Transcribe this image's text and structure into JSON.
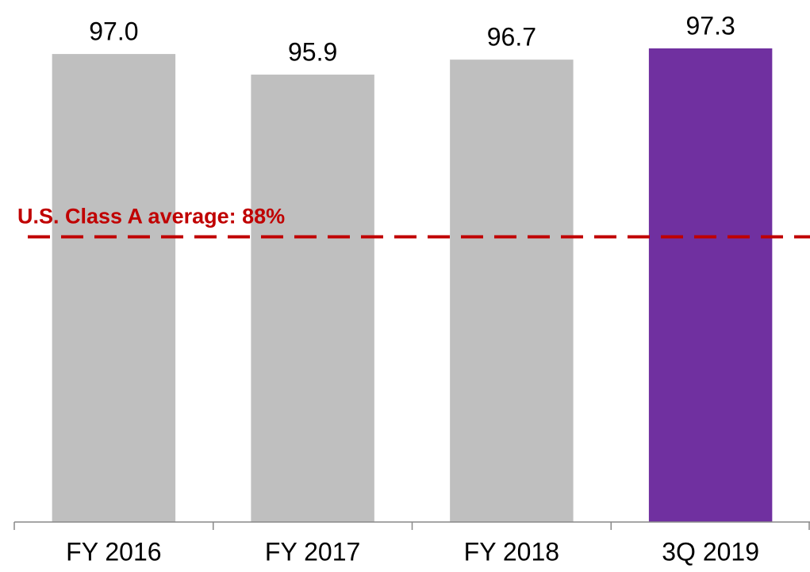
{
  "chart_data": {
    "type": "bar",
    "categories": [
      "FY 2016",
      "FY 2017",
      "FY 2018",
      "3Q 2019"
    ],
    "values": [
      97.0,
      95.9,
      96.7,
      97.3
    ],
    "value_labels": [
      "97.0",
      "95.9",
      "96.7",
      "97.3"
    ],
    "colors": [
      "#bfbfbf",
      "#bfbfbf",
      "#bfbfbf",
      "#7030a0"
    ],
    "ylim": [
      72,
      100
    ],
    "reference_line": {
      "value": 88,
      "label": "U.S. Class A average: 88%",
      "color": "#c00000"
    }
  }
}
